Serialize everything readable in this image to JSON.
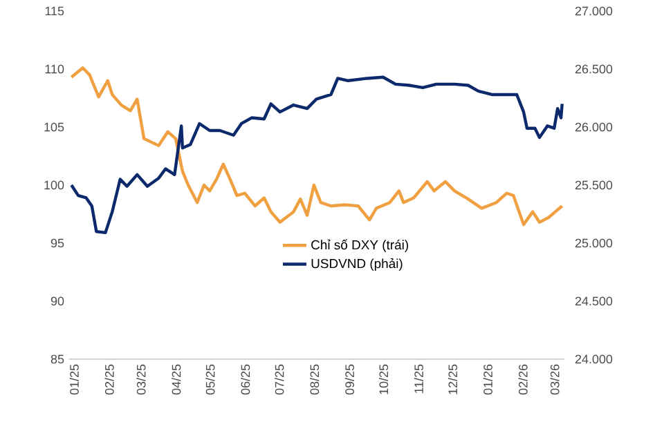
{
  "chart_data": {
    "type": "line",
    "xlim": [
      "2024-12-30",
      "2026-03-12"
    ],
    "xticks": [
      {
        "value": "2025-01-01",
        "label": "01/25"
      },
      {
        "value": "2025-02-01",
        "label": "02/25"
      },
      {
        "value": "2025-03-01",
        "label": "03/25"
      },
      {
        "value": "2025-04-01",
        "label": "04/25"
      },
      {
        "value": "2025-05-01",
        "label": "05/25"
      },
      {
        "value": "2025-06-01",
        "label": "06/25"
      },
      {
        "value": "2025-07-01",
        "label": "07/25"
      },
      {
        "value": "2025-08-01",
        "label": "08/25"
      },
      {
        "value": "2025-09-01",
        "label": "09/25"
      },
      {
        "value": "2025-10-01",
        "label": "10/25"
      },
      {
        "value": "2025-11-01",
        "label": "11/25"
      },
      {
        "value": "2025-12-01",
        "label": "12/25"
      },
      {
        "value": "2026-01-01",
        "label": "01/26"
      },
      {
        "value": "2026-02-01",
        "label": "02/26"
      },
      {
        "value": "2026-03-01",
        "label": "03/26"
      }
    ],
    "ylim": [
      85,
      115
    ],
    "yticks": [
      85,
      90,
      95,
      100,
      105,
      110,
      115
    ],
    "y2lim": [
      24000,
      27000
    ],
    "y2ticks": [
      {
        "value": 24000,
        "label": "24.000"
      },
      {
        "value": 24500,
        "label": "24.500"
      },
      {
        "value": 25000,
        "label": "25.000"
      },
      {
        "value": 25500,
        "label": "25.500"
      },
      {
        "value": 26000,
        "label": "26.000"
      },
      {
        "value": 26500,
        "label": "26.500"
      },
      {
        "value": 27000,
        "label": "27.000"
      }
    ],
    "legend": "bottom",
    "series": [
      {
        "name": "Chỉ số DXY (trái)",
        "color": "#f0a040",
        "x": [
          "2025-01-01",
          "2025-01-11",
          "2025-01-17",
          "2025-01-25",
          "2025-02-02",
          "2025-02-06",
          "2025-02-14",
          "2025-02-22",
          "2025-02-28",
          "2025-03-06",
          "2025-03-19",
          "2025-03-27",
          "2025-04-03",
          "2025-04-09",
          "2025-04-14",
          "2025-04-22",
          "2025-04-28",
          "2025-05-03",
          "2025-05-09",
          "2025-05-15",
          "2025-05-21",
          "2025-05-27",
          "2025-06-03",
          "2025-06-12",
          "2025-06-20",
          "2025-06-26",
          "2025-07-04",
          "2025-07-16",
          "2025-07-22",
          "2025-07-28",
          "2025-08-03",
          "2025-08-09",
          "2025-08-18",
          "2025-08-30",
          "2025-09-11",
          "2025-09-21",
          "2025-09-27",
          "2025-10-09",
          "2025-10-17",
          "2025-10-21",
          "2025-10-30",
          "2025-11-11",
          "2025-11-17",
          "2025-11-27",
          "2025-12-05",
          "2025-12-17",
          "2025-12-29",
          "2026-01-11",
          "2026-01-20",
          "2026-01-26",
          "2026-02-04",
          "2026-02-12",
          "2026-02-18",
          "2026-02-26",
          "2026-03-04",
          "2026-03-10"
        ],
        "values": [
          109.3,
          110.1,
          109.5,
          107.6,
          109.0,
          107.8,
          106.9,
          106.4,
          107.4,
          104.0,
          103.4,
          104.6,
          104.0,
          101.2,
          100.0,
          98.5,
          100.0,
          99.5,
          100.5,
          101.8,
          100.5,
          99.1,
          99.3,
          98.2,
          98.9,
          97.7,
          96.8,
          97.7,
          98.8,
          97.4,
          100.0,
          98.5,
          98.2,
          98.3,
          98.2,
          97.0,
          98.0,
          98.5,
          99.5,
          98.5,
          98.9,
          100.3,
          99.5,
          100.3,
          99.5,
          98.8,
          98.0,
          98.5,
          99.3,
          99.1,
          96.6,
          97.7,
          96.8,
          97.2,
          97.7,
          98.2
        ]
      },
      {
        "name": "USDVND (phải)",
        "color": "#0c2a6b",
        "axis": "y2",
        "x": [
          "2025-01-01",
          "2025-01-07",
          "2025-01-14",
          "2025-01-19",
          "2025-01-23",
          "2025-01-31",
          "2025-02-06",
          "2025-02-10",
          "2025-02-13",
          "2025-02-19",
          "2025-02-28",
          "2025-03-09",
          "2025-03-19",
          "2025-03-25",
          "2025-04-02",
          "2025-04-08",
          "2025-04-09",
          "2025-04-16",
          "2025-04-24",
          "2025-05-03",
          "2025-05-12",
          "2025-05-24",
          "2025-05-31",
          "2025-06-09",
          "2025-06-20",
          "2025-06-26",
          "2025-07-04",
          "2025-07-16",
          "2025-07-28",
          "2025-08-05",
          "2025-08-18",
          "2025-08-24",
          "2025-09-02",
          "2025-09-19",
          "2025-10-03",
          "2025-10-14",
          "2025-10-26",
          "2025-11-07",
          "2025-11-19",
          "2025-12-05",
          "2025-12-17",
          "2025-12-26",
          "2026-01-07",
          "2026-01-19",
          "2026-01-29",
          "2026-02-04",
          "2026-02-07",
          "2026-02-14",
          "2026-02-18",
          "2026-02-25",
          "2026-03-03",
          "2026-03-06",
          "2026-03-09",
          "2026-03-10"
        ],
        "values": [
          25500,
          25410,
          25390,
          25320,
          25100,
          25090,
          25270,
          25430,
          25550,
          25490,
          25590,
          25490,
          25560,
          25640,
          25590,
          26010,
          25820,
          25850,
          26030,
          25970,
          25970,
          25930,
          26030,
          26080,
          26070,
          26200,
          26130,
          26190,
          26160,
          26240,
          26280,
          26420,
          26400,
          26420,
          26430,
          26370,
          26360,
          26340,
          26370,
          26370,
          26360,
          26310,
          26280,
          26280,
          26280,
          26130,
          25990,
          25990,
          25910,
          26010,
          25990,
          26160,
          26080,
          26200
        ]
      }
    ]
  }
}
